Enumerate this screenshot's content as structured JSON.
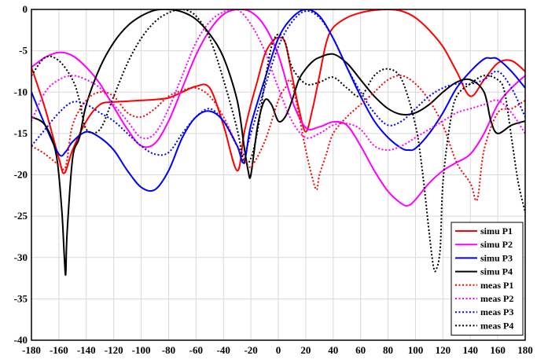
{
  "chart_data": {
    "type": "line",
    "title": "",
    "xlabel": "",
    "ylabel": "",
    "xlim": [
      -180,
      180
    ],
    "ylim": [
      -40,
      0
    ],
    "xticks": [
      -180,
      -160,
      -140,
      -120,
      -100,
      -80,
      -60,
      -40,
      -20,
      0,
      20,
      40,
      60,
      80,
      100,
      120,
      140,
      160,
      180
    ],
    "yticks": [
      0,
      -5,
      -10,
      -15,
      -20,
      -25,
      -30,
      -35,
      -40
    ],
    "grid": true,
    "legend_position": "bottom-right",
    "series": [
      {
        "name": "simu P1",
        "color": "#ff0000",
        "style": "solid",
        "x": [
          -180,
          -170,
          -160,
          -156,
          -150,
          -140,
          -130,
          -120,
          -110,
          -100,
          -90,
          -80,
          -70,
          -60,
          -50,
          -40,
          -30,
          -25,
          -20,
          -15,
          -10,
          -5,
          0,
          5,
          10,
          15,
          20,
          25,
          30,
          35,
          40,
          50,
          60,
          70,
          80,
          90,
          100,
          110,
          120,
          130,
          140,
          150,
          160,
          170,
          180
        ],
        "y": [
          -7,
          -12,
          -18,
          -19.8,
          -17,
          -13.5,
          -11.5,
          -11.2,
          -11.1,
          -11,
          -10.9,
          -10.7,
          -10,
          -9.3,
          -9.5,
          -14,
          -19.5,
          -15,
          -11.5,
          -8.5,
          -5.5,
          -4,
          -3.4,
          -4,
          -8,
          -12,
          -14.8,
          -12,
          -8,
          -4,
          -2.2,
          -1,
          -0.4,
          -0.1,
          0,
          -0.2,
          -1,
          -2.5,
          -4.5,
          -7.5,
          -10.5,
          -8.5,
          -6.5,
          -6.2,
          -7.5
        ]
      },
      {
        "name": "simu P2",
        "color": "#ff00ff",
        "style": "solid",
        "x": [
          -180,
          -170,
          -160,
          -150,
          -140,
          -130,
          -120,
          -110,
          -100,
          -90,
          -80,
          -70,
          -60,
          -50,
          -40,
          -30,
          -20,
          -10,
          0,
          10,
          20,
          30,
          40,
          50,
          60,
          70,
          80,
          90,
          95,
          100,
          110,
          120,
          130,
          140,
          150,
          160,
          170,
          180
        ],
        "y": [
          -7,
          -5.8,
          -5.2,
          -5.6,
          -7,
          -9,
          -11.8,
          -14.5,
          -16.5,
          -16.2,
          -13.5,
          -9.5,
          -5.5,
          -2.5,
          -0.6,
          0,
          -0.3,
          -2,
          -5.5,
          -11,
          -14.3,
          -14.2,
          -13.6,
          -14,
          -16.5,
          -19.5,
          -22,
          -23.5,
          -23.7,
          -23,
          -21,
          -19.5,
          -18.5,
          -17.5,
          -15,
          -11.5,
          -9.5,
          -8
        ]
      },
      {
        "name": "simu P3",
        "color": "#0000ff",
        "style": "solid",
        "x": [
          -180,
          -170,
          -160,
          -155,
          -150,
          -140,
          -130,
          -120,
          -110,
          -100,
          -90,
          -80,
          -70,
          -60,
          -50,
          -40,
          -30,
          -25,
          -20,
          -10,
          0,
          10,
          20,
          30,
          40,
          50,
          60,
          70,
          80,
          90,
          95,
          100,
          110,
          120,
          130,
          140,
          150,
          155,
          160,
          170,
          180
        ],
        "y": [
          -10,
          -14,
          -17.5,
          -17.2,
          -16,
          -14.8,
          -15.5,
          -17,
          -19.5,
          -21.5,
          -21.8,
          -19.5,
          -15.5,
          -13,
          -12.3,
          -13.5,
          -16.5,
          -18.5,
          -14,
          -8.5,
          -3.5,
          -1,
          0,
          -0.8,
          -3.5,
          -7,
          -10.5,
          -13.5,
          -15.5,
          -16.8,
          -17,
          -16.8,
          -15,
          -12.5,
          -9.5,
          -7.5,
          -6,
          -5.9,
          -6,
          -7.5,
          -9.5
        ]
      },
      {
        "name": "simu P4",
        "color": "#000000",
        "style": "solid",
        "x": [
          -180,
          -170,
          -162,
          -158,
          -156,
          -155,
          -154,
          -150,
          -145,
          -140,
          -130,
          -120,
          -110,
          -100,
          -90,
          -80,
          -70,
          -60,
          -50,
          -40,
          -30,
          -25,
          -22,
          -20,
          -15,
          -10,
          -5,
          0,
          5,
          10,
          15,
          20,
          25,
          30,
          40,
          50,
          60,
          70,
          80,
          90,
          100,
          110,
          120,
          130,
          140,
          150,
          155,
          160,
          170,
          180
        ],
        "y": [
          -13,
          -14,
          -17.5,
          -24,
          -30,
          -32,
          -27,
          -18,
          -15.5,
          -11.5,
          -7,
          -4,
          -2,
          -0.8,
          -0.1,
          0,
          -0.3,
          -1.2,
          -3,
          -5.8,
          -11,
          -16.5,
          -19.5,
          -20,
          -14,
          -11,
          -11.5,
          -13.5,
          -13,
          -11,
          -8.5,
          -7.2,
          -6.3,
          -5.8,
          -5.4,
          -6.5,
          -8.5,
          -10.5,
          -12,
          -12.7,
          -12.5,
          -11.5,
          -10,
          -8.8,
          -8.5,
          -10,
          -13.5,
          -15,
          -14,
          -13.5
        ]
      },
      {
        "name": "meas P1",
        "color": "#ff0000",
        "style": "dotted",
        "x": [
          -180,
          -170,
          -160,
          -155,
          -150,
          -140,
          -130,
          -120,
          -110,
          -100,
          -90,
          -80,
          -70,
          -60,
          -50,
          -40,
          -30,
          -25,
          -20,
          -10,
          0,
          5,
          10,
          20,
          25,
          28,
          30,
          35,
          40,
          50,
          60,
          70,
          80,
          90,
          100,
          110,
          120,
          130,
          140,
          145,
          150,
          160,
          170,
          180
        ],
        "y": [
          -16.5,
          -17.5,
          -18.8,
          -19,
          -14,
          -11,
          -10,
          -10.5,
          -12.5,
          -13,
          -12,
          -10.5,
          -9.8,
          -9.5,
          -10.5,
          -13,
          -16.5,
          -18,
          -19,
          -16,
          -11,
          -9.5,
          -9,
          -17,
          -20.5,
          -21.8,
          -20,
          -17.5,
          -15,
          -13,
          -11.5,
          -10,
          -8.5,
          -8,
          -9,
          -11,
          -14,
          -18.5,
          -21,
          -23,
          -17,
          -12.5,
          -12,
          -11
        ]
      },
      {
        "name": "meas P2",
        "color": "#ff00ff",
        "style": "dotted",
        "x": [
          -180,
          -170,
          -160,
          -150,
          -140,
          -130,
          -120,
          -110,
          -100,
          -90,
          -80,
          -70,
          -60,
          -50,
          -40,
          -30,
          -20,
          -10,
          0,
          10,
          20,
          30,
          40,
          50,
          60,
          70,
          80,
          90,
          100,
          110,
          120,
          130,
          140,
          150,
          160,
          170,
          180
        ],
        "y": [
          -13.5,
          -10,
          -8.5,
          -8,
          -8.5,
          -9.5,
          -11.5,
          -13.5,
          -15.5,
          -15,
          -12,
          -8,
          -4,
          -1.5,
          -0.3,
          0,
          -1.8,
          -5,
          -9.5,
          -13.5,
          -15.5,
          -15,
          -14,
          -13.8,
          -14.5,
          -16.5,
          -17,
          -16.5,
          -15.5,
          -14.5,
          -13.5,
          -12.5,
          -12,
          -11.5,
          -11,
          -12.5,
          -15
        ]
      },
      {
        "name": "meas P3",
        "color": "#0000ff",
        "style": "dotted",
        "x": [
          -180,
          -170,
          -160,
          -150,
          -140,
          -130,
          -120,
          -110,
          -100,
          -90,
          -80,
          -70,
          -60,
          -50,
          -40,
          -30,
          -25,
          -20,
          -10,
          0,
          10,
          20,
          30,
          40,
          50,
          60,
          70,
          80,
          90,
          100,
          110,
          120,
          130,
          140,
          150,
          160,
          170,
          180
        ],
        "y": [
          -16.5,
          -14.5,
          -12.5,
          -11.2,
          -11.5,
          -12.5,
          -13.5,
          -15,
          -16.5,
          -17.5,
          -17.3,
          -15,
          -13,
          -12,
          -13.5,
          -16.5,
          -17.5,
          -15,
          -9.5,
          -4.5,
          -1.5,
          -0.2,
          -1,
          -3.5,
          -7,
          -10,
          -12.5,
          -14,
          -13.5,
          -12,
          -10.5,
          -9.5,
          -9,
          -9,
          -8.5,
          -7.5,
          -9.5,
          -13
        ]
      },
      {
        "name": "meas P4",
        "color": "#000000",
        "style": "dotted",
        "x": [
          -180,
          -170,
          -160,
          -150,
          -145,
          -140,
          -130,
          -120,
          -110,
          -100,
          -90,
          -80,
          -70,
          -60,
          -50,
          -40,
          -30,
          -25,
          -20,
          -15,
          -10,
          -5,
          0,
          5,
          10,
          20,
          30,
          40,
          50,
          60,
          70,
          80,
          90,
          100,
          105,
          110,
          113,
          115,
          118,
          120,
          125,
          130,
          140,
          150,
          160,
          165,
          170,
          175,
          180
        ],
        "y": [
          -8,
          -5.8,
          -6.2,
          -8.5,
          -11,
          -14.5,
          -14.5,
          -10.5,
          -6.5,
          -3.5,
          -1.5,
          -0.4,
          0,
          -0.8,
          -3.5,
          -8.5,
          -14.5,
          -18.5,
          -18,
          -14.5,
          -9,
          -4.5,
          -3,
          -4,
          -7,
          -9,
          -8.8,
          -8.2,
          -9.5,
          -10.5,
          -8,
          -7.2,
          -8.5,
          -14,
          -19.5,
          -27,
          -31,
          -31.5,
          -29,
          -21,
          -14,
          -10.5,
          -9,
          -8,
          -8.5,
          -10,
          -15.5,
          -21,
          -24.5
        ]
      }
    ]
  }
}
